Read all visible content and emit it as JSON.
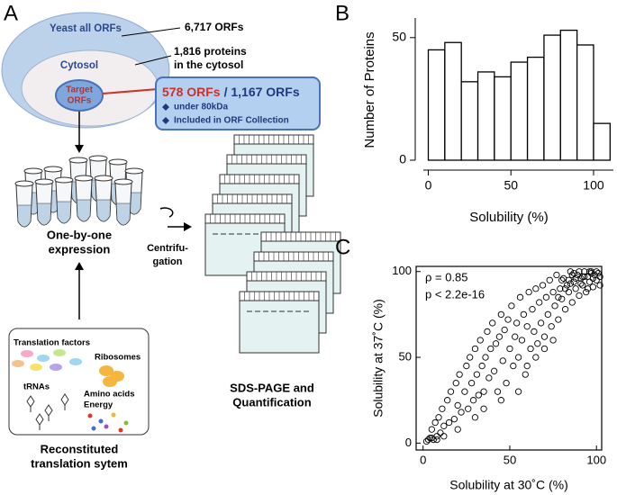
{
  "diagram": {
    "panel_label": "A",
    "all_orfs": "Yeast all ORFs",
    "cytosol": "Cytosol",
    "target": [
      "Target",
      "ORFs"
    ],
    "all_count": "6,717 ORFs",
    "cytosol_count": [
      "1,816 proteins",
      "in the cytosol"
    ],
    "selected": "578 ORFs",
    "total": "/ 1,167 ORFs",
    "criteria": [
      "under 80kDa",
      "Included in ORF Collection"
    ],
    "expression": [
      "One-by-one",
      "expression"
    ],
    "centrifugation": [
      "Centrifu-",
      "gation"
    ],
    "sds_page": [
      "SDS-PAGE and",
      "Quantification"
    ],
    "components": {
      "translation_factors": "Translation factors",
      "ribosomes": "Ribosomes",
      "trnas": "tRNAs",
      "amino_acids": [
        "Amino acids",
        "Energy"
      ]
    },
    "system": [
      "Reconstituted",
      "translation sytem"
    ]
  },
  "chart_data": [
    {
      "type": "histogram",
      "panel_label": "B",
      "xlabel": "Solubility (%)",
      "ylabel": "Number of Proteins",
      "bins": [
        0,
        10,
        20,
        30,
        40,
        50,
        60,
        70,
        80,
        90,
        100,
        110
      ],
      "values": [
        45,
        48,
        32,
        36,
        34,
        40,
        42,
        51,
        53,
        47,
        15
      ],
      "color": "#ffffff",
      "xlim": [
        -3,
        112
      ],
      "ylim": [
        0,
        58
      ],
      "xticks": [
        0,
        50,
        100
      ],
      "yticks": [
        0,
        50
      ]
    },
    {
      "type": "scatter",
      "panel_label": "C",
      "xlabel": "Solubility at 30˚C (%)",
      "ylabel": "Solubility at 37˚C (%)",
      "annotations": [
        "ρ = 0.85",
        "p < 2.2e-16"
      ],
      "x": [
        2,
        3,
        4,
        5,
        6,
        7,
        8,
        9,
        10,
        11,
        12,
        14,
        15,
        16,
        18,
        19,
        20,
        21,
        22,
        24,
        25,
        26,
        27,
        28,
        29,
        30,
        31,
        32,
        33,
        34,
        35,
        36,
        37,
        38,
        39,
        40,
        41,
        42,
        43,
        44,
        45,
        46,
        47,
        48,
        49,
        50,
        51,
        52,
        53,
        54,
        55,
        56,
        57,
        58,
        59,
        60,
        61,
        62,
        63,
        64,
        65,
        66,
        67,
        68,
        69,
        70,
        71,
        72,
        73,
        74,
        75,
        76,
        77,
        78,
        79,
        80,
        81,
        82,
        83,
        84,
        85,
        86,
        87,
        88,
        89,
        90,
        91,
        92,
        93,
        94,
        95,
        96,
        97,
        98,
        99,
        100,
        101,
        102,
        5,
        8,
        12,
        20,
        30,
        35,
        45,
        55,
        60,
        65,
        70,
        75,
        78,
        80,
        82,
        85,
        86,
        88,
        90,
        92,
        95,
        97,
        100,
        84,
        87,
        91,
        93,
        96,
        98,
        102
      ],
      "y": [
        1,
        2,
        3,
        8,
        2,
        12,
        4,
        15,
        6,
        20,
        10,
        25,
        12,
        30,
        14,
        35,
        22,
        40,
        18,
        30,
        45,
        20,
        50,
        35,
        25,
        55,
        40,
        28,
        60,
        45,
        30,
        50,
        65,
        38,
        55,
        70,
        42,
        58,
        30,
        62,
        75,
        48,
        66,
        35,
        72,
        55,
        80,
        45,
        62,
        70,
        50,
        85,
        60,
        75,
        40,
        68,
        88,
        55,
        78,
        65,
        90,
        58,
        82,
        70,
        92,
        62,
        85,
        75,
        95,
        68,
        88,
        80,
        98,
        72,
        90,
        84,
        96,
        78,
        92,
        88,
        100,
        82,
        94,
        90,
        98,
        86,
        96,
        92,
        100,
        88,
        97,
        94,
        100,
        91,
        98,
        95,
        99,
        97,
        3,
        2,
        4,
        8,
        15,
        20,
        25,
        30,
        45,
        50,
        55,
        60,
        85,
        95,
        90,
        93,
        98,
        96,
        100,
        97,
        90,
        99,
        100,
        95,
        99,
        93,
        97,
        100,
        96,
        92
      ],
      "color": "#000000",
      "xlim": [
        -4,
        103
      ],
      "ylim": [
        -4,
        103
      ],
      "xticks": [
        0,
        50,
        100
      ],
      "yticks": [
        0,
        50,
        100
      ]
    }
  ]
}
